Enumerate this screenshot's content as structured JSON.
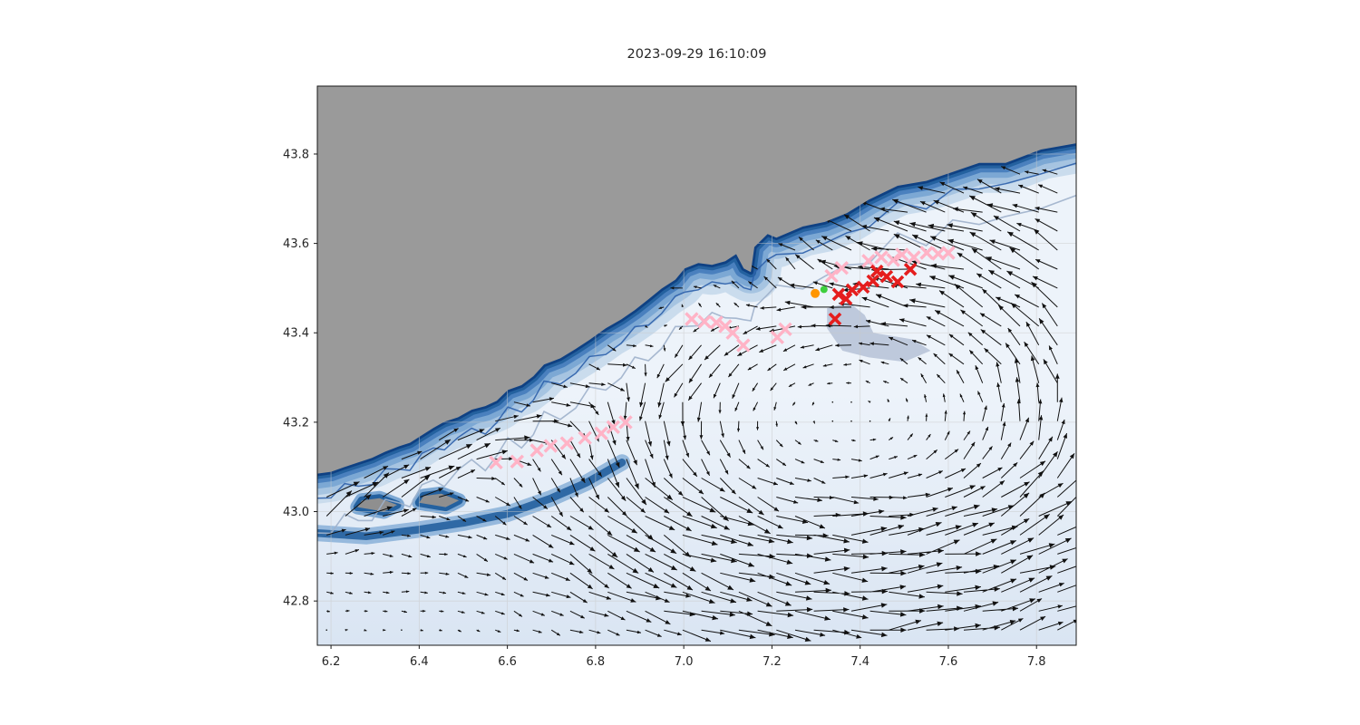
{
  "chart_data": {
    "type": "scatter",
    "title": "2023-09-29 16:10:09",
    "xlabel": "",
    "ylabel": "",
    "xlim": [
      6.169,
      7.89
    ],
    "ylim": [
      42.701,
      43.952
    ],
    "x_ticks": [
      6.2,
      6.4,
      6.6,
      6.8,
      7.0,
      7.2,
      7.4,
      7.6,
      7.8
    ],
    "x_tick_labels": [
      "6.2",
      "6.4",
      "6.6",
      "6.8",
      "7.0",
      "7.2",
      "7.4",
      "7.6",
      "7.8"
    ],
    "y_ticks": [
      42.8,
      43.0,
      43.2,
      43.4,
      43.6,
      43.8
    ],
    "y_tick_labels": [
      "42.8",
      "43.0",
      "43.2",
      "43.4",
      "43.6",
      "43.8"
    ],
    "grid": true,
    "legend": null,
    "series": [
      {
        "name": "drifter-track-pink",
        "marker": "x",
        "color": "#ffb3c6",
        "size": 13,
        "line_width": 3.4,
        "points": [
          [
            6.574,
            43.11
          ],
          [
            6.622,
            43.112
          ],
          [
            6.667,
            43.137
          ],
          [
            6.698,
            43.147
          ],
          [
            6.735,
            43.153
          ],
          [
            6.776,
            43.165
          ],
          [
            6.813,
            43.175
          ],
          [
            6.84,
            43.189
          ],
          [
            6.868,
            43.2
          ],
          [
            7.018,
            43.431
          ],
          [
            7.047,
            43.425
          ],
          [
            7.074,
            43.423
          ],
          [
            7.094,
            43.415
          ],
          [
            7.111,
            43.4
          ],
          [
            7.135,
            43.372
          ],
          [
            7.212,
            43.39
          ],
          [
            7.23,
            43.408
          ],
          [
            7.335,
            43.527
          ],
          [
            7.358,
            43.545
          ],
          [
            7.419,
            43.561
          ],
          [
            7.448,
            43.569
          ],
          [
            7.475,
            43.563
          ],
          [
            7.495,
            43.575
          ],
          [
            7.522,
            43.569
          ],
          [
            7.551,
            43.579
          ],
          [
            7.577,
            43.577
          ],
          [
            7.6,
            43.579
          ]
        ]
      },
      {
        "name": "drifter-track-red",
        "marker": "x",
        "color": "#e51d1d",
        "size": 12,
        "line_width": 3.6,
        "points": [
          [
            7.343,
            43.431
          ],
          [
            7.351,
            43.486
          ],
          [
            7.368,
            43.476
          ],
          [
            7.382,
            43.496
          ],
          [
            7.407,
            43.502
          ],
          [
            7.429,
            43.516
          ],
          [
            7.438,
            43.538
          ],
          [
            7.46,
            43.526
          ],
          [
            7.485,
            43.514
          ],
          [
            7.514,
            43.542
          ]
        ]
      },
      {
        "name": "release-point-orange",
        "marker": "dot",
        "color": "#ff9500",
        "size": 10,
        "points": [
          [
            7.298,
            43.488
          ]
        ]
      },
      {
        "name": "release-point-green",
        "marker": "dot",
        "color": "#3ecf3e",
        "size": 8,
        "points": [
          [
            7.318,
            43.497
          ]
        ]
      }
    ],
    "map": {
      "land_color": "#9a9a9a",
      "ocean_color": "#edf3fa",
      "bathymetry_colors": [
        "#cadced",
        "#a6c4e1",
        "#7ca8d4",
        "#4a80be",
        "#24619f",
        "#0f4183"
      ],
      "contour_dark_color": "#2d61ab",
      "contour_gray_color": "#9fb1cb",
      "coastline": [
        [
          6.169,
          43.085
        ],
        [
          6.2,
          43.089
        ],
        [
          6.231,
          43.1
        ],
        [
          6.262,
          43.11
        ],
        [
          6.293,
          43.12
        ],
        [
          6.323,
          43.134
        ],
        [
          6.354,
          43.146
        ],
        [
          6.379,
          43.154
        ],
        [
          6.406,
          43.171
        ],
        [
          6.432,
          43.187
        ],
        [
          6.457,
          43.201
        ],
        [
          6.488,
          43.211
        ],
        [
          6.519,
          43.228
        ],
        [
          6.55,
          43.236
        ],
        [
          6.576,
          43.248
        ],
        [
          6.601,
          43.272
        ],
        [
          6.632,
          43.283
        ],
        [
          6.659,
          43.303
        ],
        [
          6.683,
          43.329
        ],
        [
          6.72,
          43.343
        ],
        [
          6.755,
          43.364
        ],
        [
          6.786,
          43.384
        ],
        [
          6.823,
          43.41
        ],
        [
          6.858,
          43.43
        ],
        [
          6.889,
          43.451
        ],
        [
          6.92,
          43.475
        ],
        [
          6.95,
          43.499
        ],
        [
          6.981,
          43.519
        ],
        [
          7.002,
          43.544
        ],
        [
          7.033,
          43.556
        ],
        [
          7.064,
          43.552
        ],
        [
          7.094,
          43.56
        ],
        [
          7.119,
          43.576
        ],
        [
          7.136,
          43.544
        ],
        [
          7.152,
          43.536
        ],
        [
          7.16,
          43.592
        ],
        [
          7.19,
          43.621
        ],
        [
          7.21,
          43.613
        ],
        [
          7.27,
          43.638
        ],
        [
          7.32,
          43.648
        ],
        [
          7.37,
          43.668
        ],
        [
          7.42,
          43.698
        ],
        [
          7.485,
          43.729
        ],
        [
          7.55,
          43.74
        ],
        [
          7.61,
          43.76
        ],
        [
          7.67,
          43.78
        ],
        [
          7.73,
          43.78
        ],
        [
          7.81,
          43.81
        ],
        [
          7.89,
          43.824
        ]
      ],
      "islands": [
        [
          [
            6.26,
            43.01
          ],
          [
            6.32,
            43.0
          ],
          [
            6.35,
            43.015
          ],
          [
            6.31,
            43.03
          ],
          [
            6.27,
            43.025
          ]
        ],
        [
          [
            6.4,
            43.02
          ],
          [
            6.46,
            43.01
          ],
          [
            6.49,
            43.025
          ],
          [
            6.45,
            43.04
          ],
          [
            6.41,
            43.035
          ]
        ]
      ],
      "shelf_band": [
        [
          6.169,
          42.952
        ],
        [
          6.28,
          42.945
        ],
        [
          6.4,
          42.96
        ],
        [
          6.5,
          42.975
        ],
        [
          6.6,
          42.995
        ],
        [
          6.7,
          43.03
        ],
        [
          6.78,
          43.065
        ],
        [
          6.86,
          43.11
        ]
      ],
      "plume": [
        [
          7.325,
          43.455
        ],
        [
          7.375,
          43.468
        ],
        [
          7.41,
          43.44
        ],
        [
          7.43,
          43.4
        ],
        [
          7.52,
          43.385
        ],
        [
          7.56,
          43.36
        ],
        [
          7.5,
          43.335
        ],
        [
          7.42,
          43.345
        ],
        [
          7.36,
          43.36
        ],
        [
          7.325,
          43.41
        ]
      ]
    },
    "quiver": {
      "color": "#111111",
      "grid_step_deg": 0.0425,
      "description": "surface current vector field drawn as arrows over the ocean"
    }
  }
}
